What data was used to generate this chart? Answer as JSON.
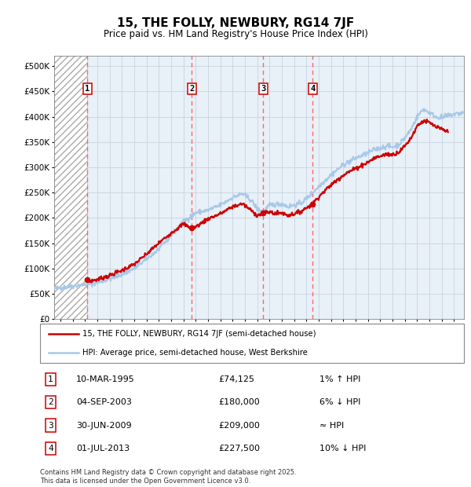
{
  "title": "15, THE FOLLY, NEWBURY, RG14 7JF",
  "subtitle": "Price paid vs. HM Land Registry's House Price Index (HPI)",
  "footer": "Contains HM Land Registry data © Crown copyright and database right 2025.\nThis data is licensed under the Open Government Licence v3.0.",
  "legend_line1": "15, THE FOLLY, NEWBURY, RG14 7JF (semi-detached house)",
  "legend_line2": "HPI: Average price, semi-detached house, West Berkshire",
  "transactions": [
    {
      "num": 1,
      "date": "10-MAR-1995",
      "price": 74125,
      "hpi_rel": "1% ↑ HPI",
      "year": 1995.19
    },
    {
      "num": 2,
      "date": "04-SEP-2003",
      "price": 180000,
      "hpi_rel": "6% ↓ HPI",
      "year": 2003.67
    },
    {
      "num": 3,
      "date": "30-JUN-2009",
      "price": 209000,
      "hpi_rel": "≈ HPI",
      "year": 2009.5
    },
    {
      "num": 4,
      "date": "01-JUL-2013",
      "price": 227500,
      "hpi_rel": "10% ↓ HPI",
      "year": 2013.5
    }
  ],
  "hpi_color": "#a8c8e8",
  "price_color": "#cc0000",
  "vline_color": "#ff6666",
  "grid_color": "#c8d4e0",
  "bg_color": "#e8f0f8",
  "hatch_bg": "#f0f0f0",
  "ylim": [
    0,
    520000
  ],
  "yticks": [
    0,
    50000,
    100000,
    150000,
    200000,
    250000,
    300000,
    350000,
    400000,
    450000,
    500000
  ],
  "xlim_start": 1992.5,
  "xlim_end": 2025.8,
  "xticks": [
    1993,
    1994,
    1995,
    1996,
    1997,
    1998,
    1999,
    2000,
    2001,
    2002,
    2003,
    2004,
    2005,
    2006,
    2007,
    2008,
    2009,
    2010,
    2011,
    2012,
    2013,
    2014,
    2015,
    2016,
    2017,
    2018,
    2019,
    2020,
    2021,
    2022,
    2023,
    2024,
    2025
  ]
}
